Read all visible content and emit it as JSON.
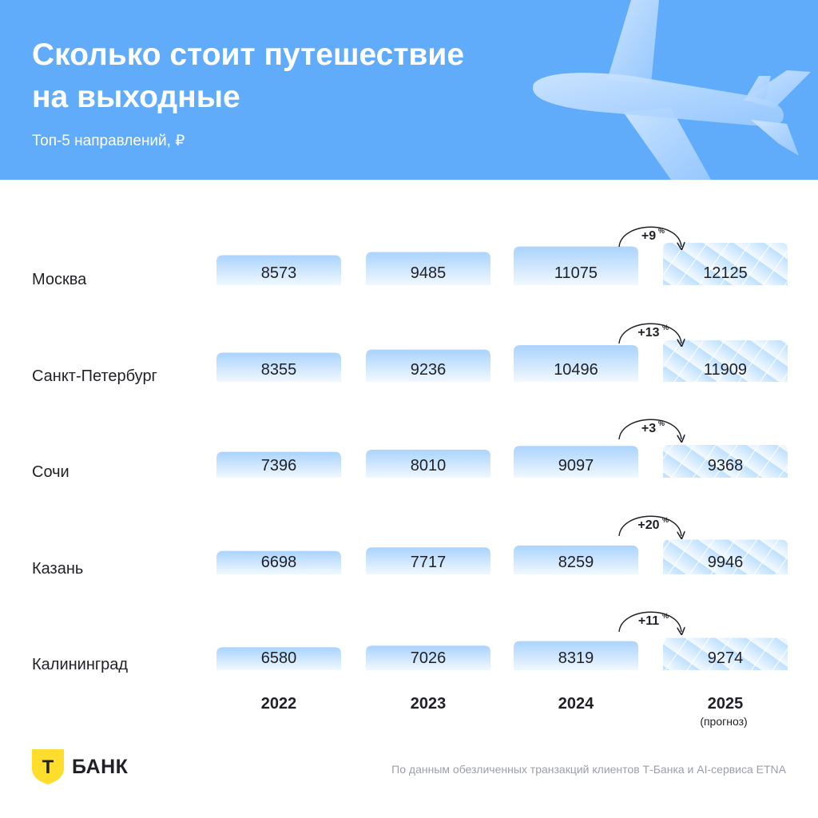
{
  "header": {
    "title": "Сколько стоит путешествие\nна выходные",
    "subtitle": "Топ-5 направлений, ₽"
  },
  "chart_data": {
    "type": "bar",
    "title": "Сколько стоит путешествие на выходные",
    "subtitle": "Топ-5 направлений, ₽",
    "categories": [
      "Москва",
      "Санкт-Петербург",
      "Сочи",
      "Казань",
      "Калининград"
    ],
    "years": [
      {
        "label": "2022",
        "note": ""
      },
      {
        "label": "2023",
        "note": ""
      },
      {
        "label": "2024",
        "note": ""
      },
      {
        "label": "2025",
        "note": "(прогноз)"
      }
    ],
    "series": [
      {
        "name": "2022",
        "values": [
          8573,
          8355,
          7396,
          6698,
          6580
        ]
      },
      {
        "name": "2023",
        "values": [
          9485,
          9236,
          8010,
          7717,
          7026
        ]
      },
      {
        "name": "2024",
        "values": [
          11075,
          10496,
          9097,
          8259,
          8319
        ]
      },
      {
        "name": "2025",
        "values": [
          12125,
          11909,
          9368,
          9946,
          9274
        ],
        "forecast": true
      }
    ],
    "growth": [
      {
        "value": "+9",
        "unit": "%"
      },
      {
        "value": "+13",
        "unit": "%"
      },
      {
        "value": "+3",
        "unit": "%"
      },
      {
        "value": "+20",
        "unit": "%"
      },
      {
        "value": "+11",
        "unit": "%"
      }
    ],
    "colors": {
      "bar_top": "#aad3fd",
      "bar_bottom": "#f1f8ff",
      "forecast_top": "#bfe0ff",
      "forecast_stripe": "#ffffff",
      "header_bg": "#60acfa"
    }
  },
  "footer": {
    "logo_letter": "Т",
    "brand": "БАНК",
    "source": "По данным обезличенных транзакций клиентов Т-Банка и AI-сервиса ETNA"
  }
}
